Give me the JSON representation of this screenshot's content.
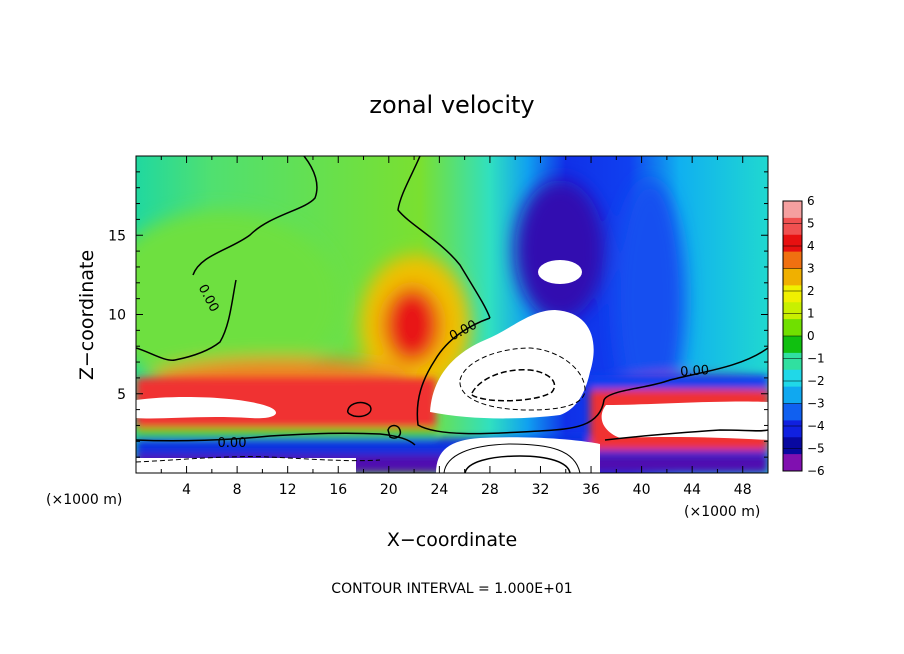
{
  "chart_data": {
    "type": "heatmap",
    "title": "zonal velocity",
    "xlabel": "X−coordinate",
    "ylabel": "Z−coordinate",
    "x_unit_label": "(×1000 m)",
    "y_unit_label": "(×1000 m)",
    "xlim": [
      0,
      50
    ],
    "ylim": [
      0,
      20
    ],
    "x_ticks": [
      4,
      8,
      12,
      16,
      20,
      24,
      28,
      32,
      36,
      40,
      44,
      48
    ],
    "y_ticks": [
      5,
      10,
      15
    ],
    "colorbar": {
      "vmin": -6,
      "vmax": 6,
      "ticks": [
        "6",
        "5",
        "4",
        "3",
        "2",
        "1",
        "0",
        "−1",
        "−2",
        "−3",
        "−4",
        "−5",
        "−6"
      ],
      "colors": [
        "#f5a0a0",
        "#f05050",
        "#e81010",
        "#f07010",
        "#f0b000",
        "#f0f000",
        "#c8f000",
        "#70e000",
        "#10c010",
        "#30e0a0",
        "#20d8e8",
        "#10a8f0",
        "#1060f0",
        "#1020e0",
        "#0808a0",
        "#8010b0"
      ]
    },
    "contour_labels": [
      "0.00",
      "0.00",
      "0.00",
      "0.00"
    ],
    "contour_interval_text": "CONTOUR INTERVAL = 1.000E+01"
  }
}
